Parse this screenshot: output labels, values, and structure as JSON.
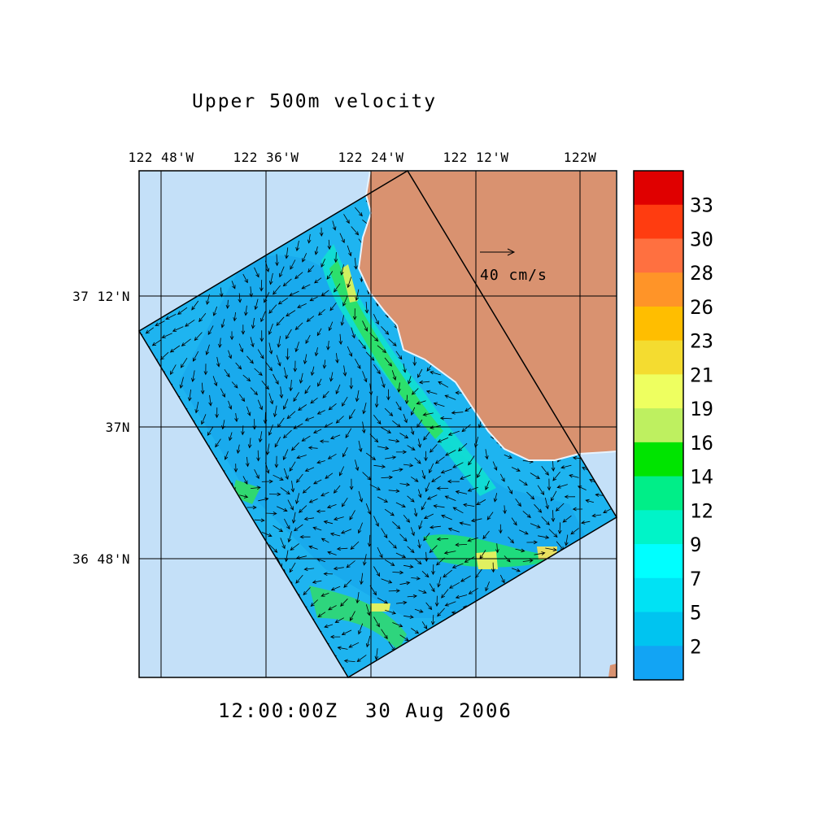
{
  "map": {
    "title": "Upper 500m velocity",
    "lon_labels": [
      "122 48'W",
      "122 36'W",
      "122 24'W",
      "122 12'W",
      "122W"
    ],
    "lat_labels": [
      "37 12'N",
      "37N",
      "36 48'N"
    ],
    "reference_vector": "40 cm/s",
    "timestamp": "12:00:00Z  30 Aug 2006"
  },
  "colorbar": {
    "colors": [
      "#e00000",
      "#ff3c10",
      "#ff7040",
      "#ff9428",
      "#ffbe00",
      "#f4dc30",
      "#eeff60",
      "#bef060",
      "#00e400",
      "#00ee88",
      "#00f4c8",
      "#00ffff",
      "#00e2f4",
      "#00c4f0",
      "#12a4f4"
    ],
    "ticks": [
      33,
      30,
      28,
      26,
      23,
      21,
      19,
      16,
      14,
      12,
      9,
      7,
      5,
      2
    ]
  }
}
